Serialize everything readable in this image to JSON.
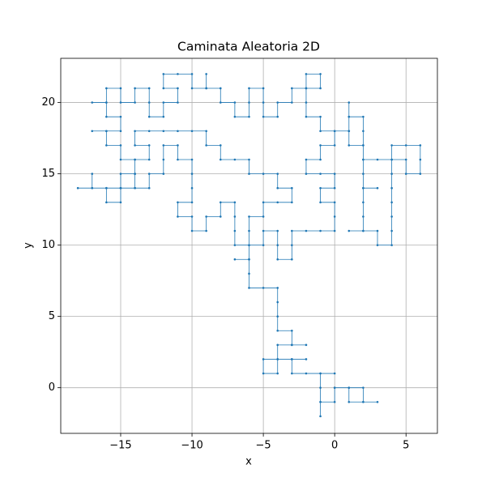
{
  "chart_data": {
    "type": "line",
    "title": "Caminata Aleatoria 2D",
    "xlabel": "x",
    "ylabel": "y",
    "color": "#1f77b4",
    "markers": true,
    "grid": true,
    "xlim": [
      -19.2,
      7.2
    ],
    "ylim": [
      -3.2,
      23.1
    ],
    "xticks": [
      {
        "value": -15,
        "label": "−15"
      },
      {
        "value": -10,
        "label": "−10"
      },
      {
        "value": -5,
        "label": "−5"
      },
      0,
      5
    ],
    "yticks": [
      0,
      5,
      10,
      15,
      20
    ],
    "x": [
      0,
      1,
      1,
      2,
      3,
      2,
      2,
      1,
      0,
      0,
      -1,
      -1,
      -1,
      -1,
      -1,
      0,
      -1,
      -2,
      -3,
      -3,
      -2,
      -3,
      -4,
      -5,
      -5,
      -4,
      -4,
      -4,
      -3,
      -2,
      -3,
      -3,
      -4,
      -4,
      -4,
      -4,
      -5,
      -6,
      -6,
      -6,
      -7,
      -6,
      -6,
      -5,
      -5,
      -4,
      -4,
      -4,
      -3,
      -3,
      -3,
      -2,
      -1,
      0,
      0,
      0,
      -1,
      -1,
      0,
      0,
      -1,
      -2,
      -2,
      -1,
      -1,
      0,
      0,
      1,
      1,
      2,
      2,
      3,
      4,
      4,
      5,
      6,
      6,
      6,
      5,
      5,
      4,
      4,
      4,
      4,
      4,
      4,
      4,
      3,
      3,
      2,
      1,
      2,
      2,
      2,
      2,
      3,
      2,
      2,
      2,
      2,
      2,
      2,
      1,
      1,
      1,
      1,
      0,
      -1,
      -1,
      -2,
      -2,
      -2,
      -2,
      -1,
      -1,
      -2,
      -3,
      -3,
      -4,
      -4,
      -5,
      -5,
      -5,
      -6,
      -6,
      -6,
      -7,
      -7,
      -8,
      -8,
      -9,
      -9,
      -9,
      -10,
      -10,
      -11,
      -12,
      -12,
      -11,
      -11,
      -12,
      -12,
      -13,
      -13,
      -13,
      -14,
      -14,
      -15,
      -15,
      -16,
      -16,
      -17,
      -16,
      -16,
      -15,
      -15,
      -16,
      -17,
      -16,
      -16,
      -15,
      -15,
      -14,
      -14,
      -15,
      -15,
      -16,
      -16,
      -15,
      -15,
      -14,
      -13,
      -13,
      -12,
      -12,
      -12,
      -11,
      -11,
      -10,
      -10,
      -10,
      -10,
      -11,
      -11,
      -10,
      -10,
      -9,
      -9,
      -8,
      -8,
      -7,
      -7,
      -7,
      -7,
      -6,
      -6,
      -6,
      -5,
      -5,
      -4,
      -3,
      -3,
      -4,
      -4,
      -5,
      -6,
      -6,
      -7,
      -8,
      -8,
      -9,
      -9,
      -10,
      -11,
      -12,
      -13,
      -14,
      -14,
      -13,
      -13,
      -14,
      -14,
      -14,
      -15,
      -16,
      -17,
      -17,
      -17,
      -18
    ],
    "values": [
      0,
      0,
      -1,
      -1,
      -1,
      -1,
      0,
      0,
      0,
      -1,
      -1,
      -2,
      -1,
      0,
      1,
      1,
      1,
      1,
      1,
      2,
      2,
      2,
      2,
      2,
      1,
      1,
      2,
      3,
      3,
      3,
      3,
      4,
      4,
      5,
      6,
      7,
      7,
      7,
      8,
      9,
      9,
      9,
      10,
      10,
      11,
      11,
      10,
      9,
      9,
      10,
      11,
      11,
      11,
      11,
      12,
      13,
      13,
      14,
      14,
      15,
      15,
      15,
      16,
      16,
      17,
      17,
      18,
      18,
      17,
      17,
      16,
      16,
      16,
      17,
      17,
      17,
      16,
      15,
      15,
      16,
      16,
      15,
      14,
      13,
      12,
      11,
      10,
      10,
      11,
      11,
      11,
      11,
      12,
      13,
      14,
      14,
      14,
      15,
      16,
      17,
      18,
      19,
      19,
      20,
      19,
      18,
      18,
      18,
      19,
      19,
      20,
      21,
      22,
      22,
      21,
      21,
      21,
      20,
      20,
      19,
      19,
      20,
      21,
      21,
      20,
      19,
      19,
      20,
      20,
      21,
      21,
      22,
      21,
      21,
      22,
      22,
      22,
      21,
      21,
      20,
      20,
      19,
      19,
      20,
      21,
      21,
      20,
      20,
      21,
      21,
      20,
      20,
      20,
      19,
      19,
      18,
      18,
      18,
      18,
      17,
      17,
      16,
      16,
      15,
      15,
      14,
      14,
      13,
      13,
      14,
      14,
      14,
      15,
      15,
      16,
      17,
      17,
      16,
      16,
      15,
      14,
      13,
      13,
      12,
      12,
      11,
      11,
      12,
      12,
      13,
      13,
      12,
      11,
      10,
      10,
      11,
      12,
      12,
      13,
      13,
      13,
      14,
      14,
      15,
      15,
      15,
      16,
      16,
      16,
      17,
      17,
      18,
      18,
      18,
      18,
      18,
      18,
      17,
      17,
      16,
      16,
      15,
      14,
      14,
      14,
      14,
      15,
      14,
      14
    ]
  }
}
